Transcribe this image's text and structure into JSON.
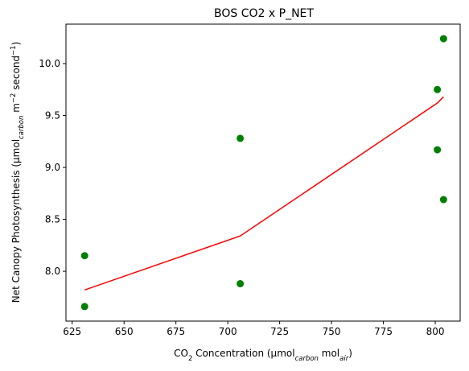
{
  "chart_data": {
    "type": "scatter",
    "title": "BOS CO2 x P_NET",
    "xlabel": {
      "parts": [
        {
          "text": "CO",
          "style": "normal"
        },
        {
          "text": "2",
          "style": "sub"
        },
        {
          "text": " Concentration (µmol",
          "style": "normal"
        },
        {
          "text": "carbon",
          "style": "sub-italic"
        },
        {
          "text": " mol",
          "style": "normal"
        },
        {
          "text": "air",
          "style": "sub-italic"
        },
        {
          "text": ")",
          "style": "normal"
        }
      ]
    },
    "ylabel": {
      "parts": [
        {
          "text": "Net Canopy Photosynthesis (µmol",
          "style": "normal"
        },
        {
          "text": "carbon",
          "style": "sub-italic"
        },
        {
          "text": " m",
          "style": "normal"
        },
        {
          "text": "−2",
          "style": "sup"
        },
        {
          "text": " second",
          "style": "normal"
        },
        {
          "text": "−1",
          "style": "sup"
        },
        {
          "text": ")",
          "style": "normal"
        }
      ]
    },
    "xlim": [
      622,
      812
    ],
    "ylim": [
      7.52,
      10.38
    ],
    "xticks": [
      625,
      650,
      675,
      700,
      725,
      750,
      775,
      800
    ],
    "xtick_labels": [
      "625",
      "650",
      "675",
      "700",
      "725",
      "750",
      "775",
      "800"
    ],
    "yticks": [
      8.0,
      8.5,
      9.0,
      9.5,
      10.0
    ],
    "ytick_labels": [
      "8.0",
      "8.5",
      "9.0",
      "9.5",
      "10.0"
    ],
    "grid": false,
    "series": [
      {
        "kind": "points",
        "color": "#008000",
        "x": [
          631,
          631,
          706,
          706,
          801,
          801,
          804,
          804
        ],
        "y": [
          8.15,
          7.66,
          9.28,
          7.88,
          9.75,
          9.17,
          10.24,
          8.69
        ]
      },
      {
        "kind": "line",
        "color": "#ff0000",
        "x": [
          631,
          706,
          801,
          804
        ],
        "y": [
          7.82,
          8.34,
          9.62,
          9.68
        ]
      }
    ]
  }
}
